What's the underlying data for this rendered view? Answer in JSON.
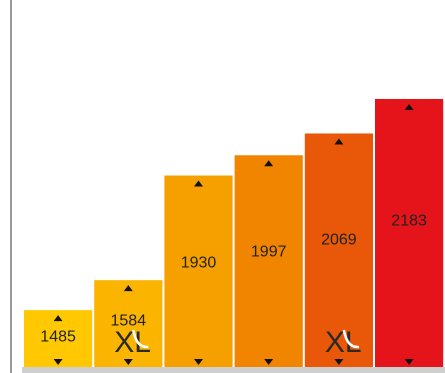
{
  "chart_data": {
    "type": "bar",
    "categories": [
      "",
      "",
      "",
      "",
      "",
      ""
    ],
    "values": [
      1485,
      1584,
      1930,
      1997,
      2069,
      2183
    ],
    "value_labels": [
      "1485",
      "1584",
      "1930",
      "1997",
      "2069",
      "2183"
    ],
    "colors": [
      "#FFC800",
      "#FBB400",
      "#F6A000",
      "#F28500",
      "#E85808",
      "#E5141A"
    ],
    "xl_badge": [
      false,
      true,
      false,
      false,
      true,
      false
    ],
    "xl_label": "XL",
    "ylim": [
      1000,
      2200
    ],
    "title": "",
    "xlabel": "",
    "ylabel": "",
    "grid": false,
    "legend": false,
    "arrow_color": "#111111",
    "baseline_color": "#cfcfcf",
    "axis_color": "#333333"
  }
}
